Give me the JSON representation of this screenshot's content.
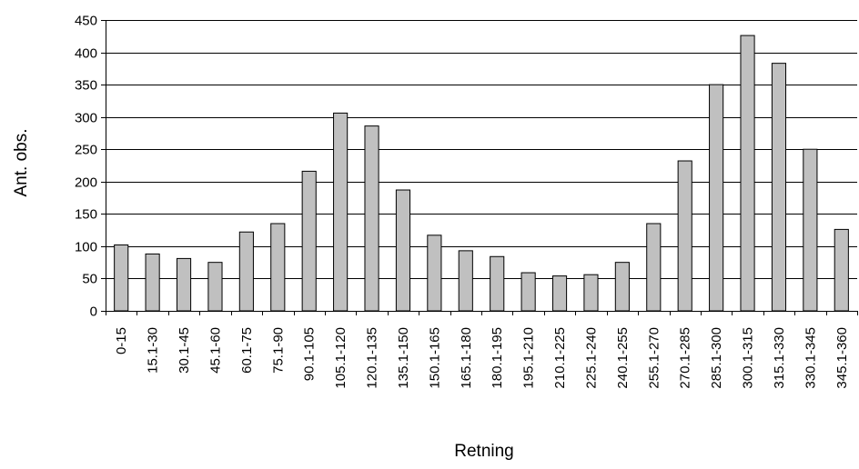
{
  "chart_data": {
    "type": "bar",
    "title": "",
    "xlabel": "Retning",
    "ylabel": "Ant. obs.",
    "ylim": [
      0,
      450
    ],
    "yticks": [
      0,
      50,
      100,
      150,
      200,
      250,
      300,
      350,
      400,
      450
    ],
    "grid": true,
    "legend": "none",
    "bar_color": "#c0c0c0",
    "categories": [
      "0-15",
      "15.1-30",
      "30.1-45",
      "45.1-60",
      "60.1-75",
      "75.1-90",
      "90.1-105",
      "105.1-120",
      "120.1-135",
      "135.1-150",
      "150.1-165",
      "165.1-180",
      "180.1-195",
      "195.1-210",
      "210.1-225",
      "225.1-240",
      "240.1-255",
      "255.1-270",
      "270.1-285",
      "285.1-300",
      "300.1-315",
      "315.1-330",
      "330.1-345",
      "345.1-360"
    ],
    "values": [
      102,
      88,
      81,
      75,
      122,
      135,
      216,
      306,
      286,
      187,
      117,
      93,
      84,
      59,
      54,
      56,
      75,
      135,
      232,
      350,
      426,
      383,
      250,
      126
    ]
  }
}
